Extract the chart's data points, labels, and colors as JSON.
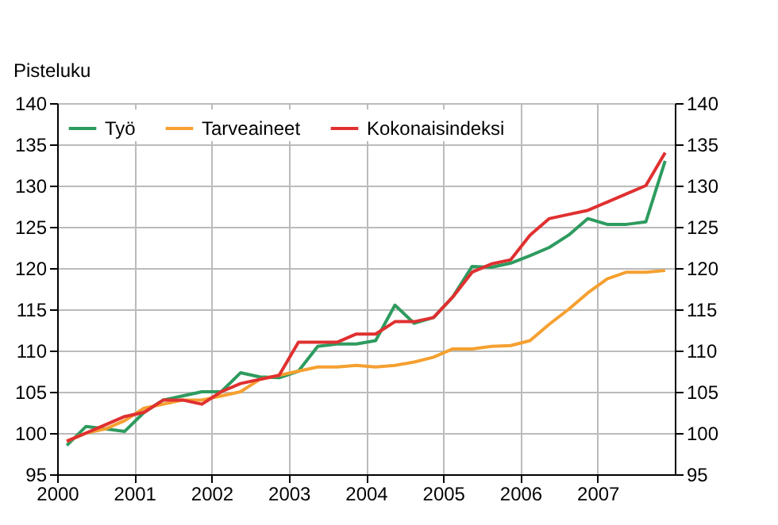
{
  "chart_data": {
    "type": "line",
    "ylabel": "Pisteluku",
    "x": [
      2000.125,
      2000.375,
      2000.625,
      2000.875,
      2001.125,
      2001.375,
      2001.625,
      2001.875,
      2002.125,
      2002.375,
      2002.625,
      2002.875,
      2003.125,
      2003.375,
      2003.625,
      2003.875,
      2004.125,
      2004.375,
      2004.625,
      2004.875,
      2005.125,
      2005.375,
      2005.625,
      2005.875,
      2006.125,
      2006.375,
      2006.625,
      2006.875,
      2007.125,
      2007.375,
      2007.625,
      2007.875
    ],
    "series": [
      {
        "name": "Työ",
        "color": "#2e9b5f",
        "values": [
          98.5,
          100.8,
          100.5,
          100.2,
          102.5,
          104,
          104.5,
          105,
          105,
          107.3,
          106.8,
          106.7,
          107.5,
          110.5,
          110.8,
          110.8,
          111.2,
          115.5,
          113.3,
          114,
          116.5,
          120.2,
          120.1,
          120.6,
          121.5,
          122.5,
          124,
          126,
          125.3,
          125.3,
          125.6,
          133
        ]
      },
      {
        "name": "Tarveaineet",
        "color": "#f5a030",
        "values": [
          99,
          100,
          100.5,
          101.5,
          103,
          103.5,
          104,
          104,
          104.5,
          105,
          106.5,
          107,
          107.5,
          108,
          108,
          108.2,
          108,
          108.2,
          108.6,
          109.2,
          110.2,
          110.2,
          110.5,
          110.6,
          111.2,
          113.2,
          115,
          117,
          118.7,
          119.5,
          119.5,
          119.7
        ]
      },
      {
        "name": "Kokonaisindeksi",
        "color": "#e03030",
        "values": [
          99,
          100,
          101,
          102,
          102.5,
          104,
          104,
          103.5,
          105,
          106,
          106.5,
          107,
          111,
          111,
          111,
          112,
          112,
          113.5,
          113.5,
          114,
          116.5,
          119.5,
          120.5,
          121,
          124,
          126,
          126.5,
          127,
          128,
          129,
          130,
          134
        ]
      }
    ],
    "xlim": [
      2000,
      2008
    ],
    "xticks": [
      2000,
      2001,
      2002,
      2003,
      2004,
      2005,
      2006,
      2007
    ],
    "ylim": [
      95,
      140
    ],
    "yticks": [
      95,
      100,
      105,
      110,
      115,
      120,
      125,
      130,
      135,
      140
    ],
    "y2lim": [
      95,
      140
    ],
    "y2ticks": [
      95,
      100,
      105,
      110,
      115,
      120,
      125,
      130,
      135,
      140
    ],
    "grid": true,
    "legend": "top left",
    "marker": "none",
    "line_style": "solid"
  }
}
